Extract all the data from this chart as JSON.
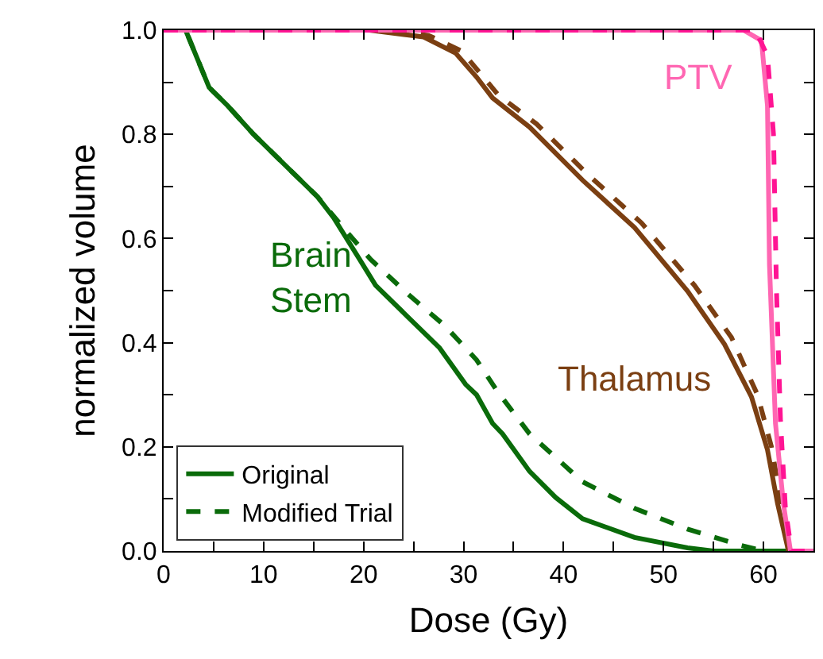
{
  "chart_data": {
    "type": "line",
    "xlabel": "Dose (Gy)",
    "ylabel": "normalized volume",
    "xlim": [
      0,
      65
    ],
    "ylim": [
      0,
      1.0
    ],
    "xticks": [
      0,
      {
        "value": 5,
        "label": null
      },
      10,
      {
        "value": 15,
        "label": null
      },
      20,
      {
        "value": 25,
        "label": null
      },
      30,
      {
        "value": 35,
        "label": null
      },
      40,
      {
        "value": 45,
        "label": null
      },
      50,
      {
        "value": 55,
        "label": null
      },
      60,
      {
        "value": 65,
        "label": null
      }
    ],
    "yticks": [
      {
        "value": 0,
        "label": "0.0"
      },
      {
        "value": 0.1,
        "label": null
      },
      0.2,
      {
        "value": 0.3,
        "label": null
      },
      0.4,
      {
        "value": 0.5,
        "label": null
      },
      0.6,
      {
        "value": 0.7,
        "label": null
      },
      0.8,
      {
        "value": 0.9,
        "label": null
      },
      {
        "value": 1,
        "label": "1.0"
      }
    ],
    "grid": false,
    "legend": "bottom left",
    "marker": "none",
    "annotations": [
      "Brain\nStem",
      "Thalamus",
      "PTV"
    ],
    "series": [
      {
        "name": "Original",
        "color": "#0a6b0a",
        "line_style": "solid",
        "x": [
          0,
          2.2,
          4.55,
          6.4,
          9.0,
          12.2,
          15.4,
          17.0,
          19.6,
          21.2,
          24.4,
          27.6,
          30.2,
          31.3,
          32.9,
          33.9,
          36.6,
          39.2,
          41.9,
          47.1,
          52.4,
          55,
          65
        ],
        "values": [
          1,
          1,
          0.89,
          0.855,
          0.8,
          0.74,
          0.68,
          0.64,
          0.56,
          0.51,
          0.45,
          0.39,
          0.32,
          0.3,
          0.245,
          0.225,
          0.153,
          0.103,
          0.062,
          0.026,
          0.006,
          0,
          0
        ]
      },
      {
        "name": "Modified Trial",
        "color": "#0a6b0a",
        "line_style": "dashed",
        "x": [
          0,
          2.2,
          4.55,
          6.4,
          9.0,
          12.2,
          15.4,
          18.0,
          20.7,
          24.4,
          28.1,
          31.3,
          33.4,
          36.6,
          41.9,
          47.1,
          52.4,
          57.7,
          60,
          65
        ],
        "values": [
          1,
          1,
          0.89,
          0.855,
          0.8,
          0.74,
          0.68,
          0.62,
          0.56,
          0.494,
          0.433,
          0.367,
          0.306,
          0.225,
          0.133,
          0.082,
          0.042,
          0.011,
          0,
          0
        ]
      },
      {
        "color": "#7b3f12",
        "line_style": "solid",
        "x": [
          0,
          20.6,
          26,
          29.2,
          31.3,
          32.9,
          36.6,
          41.9,
          47.1,
          52.4,
          56.1,
          58.8,
          60.4,
          61.4,
          62.5,
          65
        ],
        "values": [
          1,
          1,
          0.987,
          0.956,
          0.91,
          0.87,
          0.814,
          0.712,
          0.621,
          0.499,
          0.397,
          0.296,
          0.194,
          0.092,
          0,
          0
        ]
      },
      {
        "color": "#7b3f12",
        "line_style": "dashed",
        "x": [
          0,
          22,
          26.5,
          29.8,
          33.5,
          37.3,
          42.6,
          47.8,
          53.1,
          56.8,
          59.4,
          60.8,
          61.7,
          62.5,
          65
        ],
        "values": [
          1,
          1,
          0.99,
          0.96,
          0.875,
          0.82,
          0.72,
          0.63,
          0.51,
          0.41,
          0.3,
          0.2,
          0.1,
          0,
          0
        ]
      },
      {
        "color": "#ff66b2",
        "line_style": "solid",
        "x": [
          0,
          58,
          59.8,
          60.4,
          60.6,
          61.2,
          62.0,
          62.7,
          65
        ],
        "values": [
          1,
          1,
          0.98,
          0.855,
          0.55,
          0.245,
          0.09,
          0,
          0
        ]
      },
      {
        "color": "#ff1493",
        "line_style": "dashed",
        "x": [
          0,
          59.2,
          60.4,
          61.0,
          61.3,
          61.7,
          62.2,
          62.8,
          65
        ],
        "values": [
          1,
          1,
          0.95,
          0.8,
          0.5,
          0.25,
          0.08,
          0,
          0
        ]
      }
    ]
  }
}
